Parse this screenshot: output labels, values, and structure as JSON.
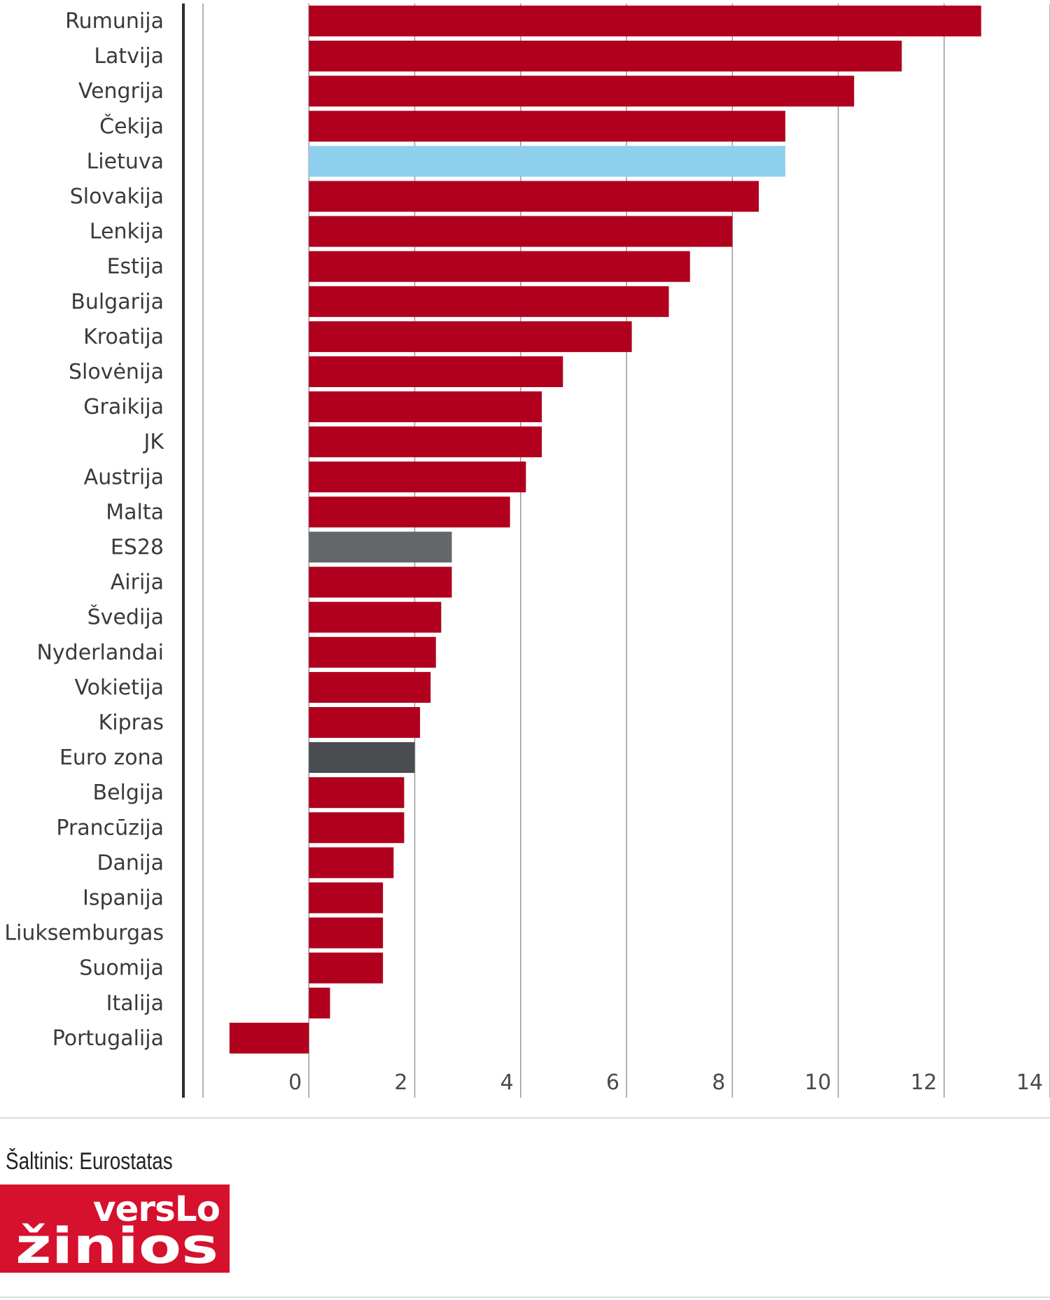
{
  "chart_data": {
    "type": "bar",
    "orientation": "horizontal",
    "title": "",
    "xlabel": "",
    "ylabel": "",
    "xlim": [
      -2,
      14
    ],
    "xticks": [
      0,
      2,
      4,
      6,
      8,
      10,
      12,
      14
    ],
    "grid": true,
    "legend": "none",
    "colors": {
      "default": "#b0001e",
      "highlight": "#8ecfee",
      "es28": "#63676a",
      "euro_zone": "#4a4d4f"
    },
    "categories": [
      "Rumunija",
      "Latvija",
      "Vengrija",
      "Čekija",
      "Lietuva",
      "Slovakija",
      "Lenkija",
      "Estija",
      "Bulgarija",
      "Kroatija",
      "Slovėnija",
      "Graikija",
      "JK",
      "Austrija",
      "Malta",
      "ES28",
      "Airija",
      "Švedija",
      "Nyderlandai",
      "Vokietija",
      "Kipras",
      "Euro zona",
      "Belgija",
      "Prancūzija",
      "Danija",
      "Ispanija",
      "Liuksemburgas",
      "Suomija",
      "Italija",
      "Portugalija"
    ],
    "values": [
      12.7,
      11.2,
      10.3,
      9.0,
      9.0,
      8.5,
      8.0,
      7.2,
      6.8,
      6.1,
      4.8,
      4.4,
      4.4,
      4.1,
      3.8,
      2.7,
      2.7,
      2.5,
      2.4,
      2.3,
      2.1,
      2.0,
      1.8,
      1.8,
      1.6,
      1.4,
      1.4,
      1.4,
      0.4,
      -1.5
    ],
    "bar_colors": [
      "default",
      "default",
      "default",
      "default",
      "highlight",
      "default",
      "default",
      "default",
      "default",
      "default",
      "default",
      "default",
      "default",
      "default",
      "default",
      "es28",
      "default",
      "default",
      "default",
      "default",
      "default",
      "euro_zone",
      "default",
      "default",
      "default",
      "default",
      "default",
      "default",
      "default",
      "default"
    ]
  },
  "footer": {
    "source": "Šaltinis: Eurostatas",
    "logo_top": "versLo",
    "logo_bottom": "žinios",
    "logo_color": "#d6112e"
  }
}
